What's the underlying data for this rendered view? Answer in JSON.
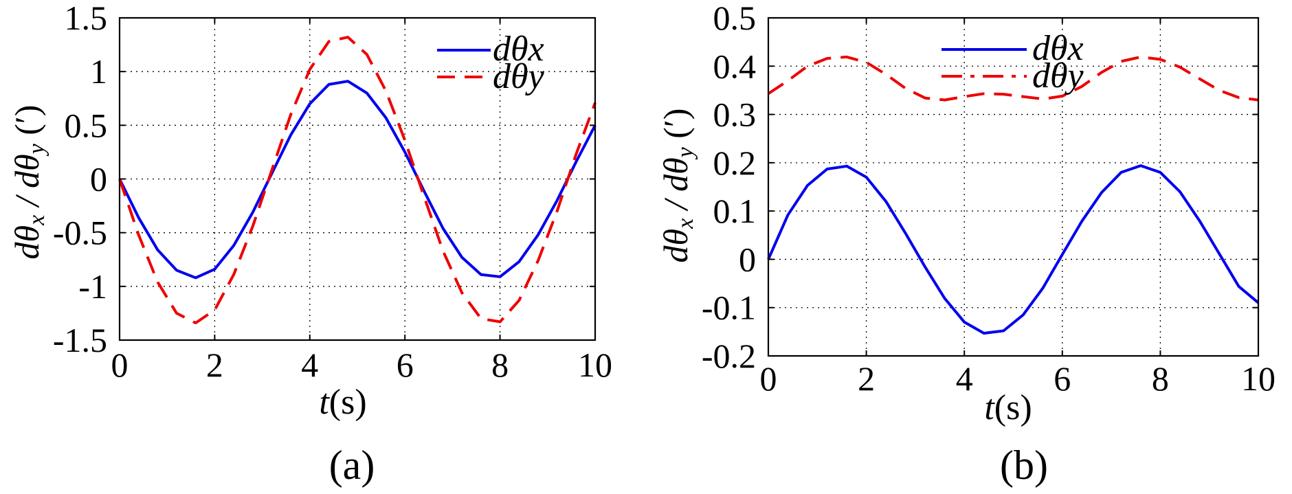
{
  "chart_data": [
    {
      "type": "line",
      "caption": "(a)",
      "xlabel": {
        "var": "t",
        "unit": "(s)"
      },
      "ylabel": {
        "prefix": "dθ",
        "sub1": "x",
        "sep": " / dθ",
        "sub2": "y",
        "unit": " (′)"
      },
      "xlim": [
        0,
        10
      ],
      "ylim": [
        -1.5,
        1.5
      ],
      "xticks": [
        0,
        2,
        4,
        6,
        8,
        10
      ],
      "xtick_labels": [
        "0",
        "2",
        "4",
        "6",
        "8",
        "10"
      ],
      "yticks": [
        1.5,
        1,
        0.5,
        0,
        -0.5,
        -1,
        -1.5
      ],
      "ytick_labels": [
        "1.5",
        "1",
        "0.5",
        "0",
        "-0.5",
        "-1",
        "-1.5"
      ],
      "grid": true,
      "legend": "top-right",
      "series": [
        {
          "name": "dθx",
          "color": "#0000ee",
          "style": "solid",
          "x": [
            0,
            0.4,
            0.8,
            1.2,
            1.6,
            2.0,
            2.4,
            2.8,
            3.2,
            3.6,
            4.0,
            4.4,
            4.8,
            5.2,
            5.6,
            6.0,
            6.4,
            6.8,
            7.2,
            7.6,
            8.0,
            8.4,
            8.8,
            9.2,
            9.6,
            10.0
          ],
          "y": [
            0,
            -0.36,
            -0.66,
            -0.85,
            -0.92,
            -0.84,
            -0.62,
            -0.31,
            0.05,
            0.41,
            0.7,
            0.88,
            0.91,
            0.8,
            0.57,
            0.25,
            -0.11,
            -0.46,
            -0.73,
            -0.89,
            -0.91,
            -0.77,
            -0.52,
            -0.2,
            0.16,
            0.5
          ]
        },
        {
          "name": "dθy",
          "color": "#ee0000",
          "style": "dashed",
          "x": [
            0,
            0.4,
            0.8,
            1.2,
            1.6,
            2.0,
            2.4,
            2.8,
            3.2,
            3.6,
            4.0,
            4.4,
            4.8,
            5.2,
            5.6,
            6.0,
            6.4,
            6.8,
            7.2,
            7.6,
            8.0,
            8.4,
            8.8,
            9.2,
            9.6,
            10.0
          ],
          "y": [
            0,
            -0.52,
            -0.96,
            -1.25,
            -1.34,
            -1.22,
            -0.89,
            -0.44,
            0.08,
            0.6,
            1.02,
            1.28,
            1.32,
            1.16,
            0.82,
            0.36,
            -0.16,
            -0.67,
            -1.06,
            -1.3,
            -1.33,
            -1.13,
            -0.76,
            -0.3,
            0.23,
            0.71
          ]
        }
      ]
    },
    {
      "type": "line",
      "caption": "(b)",
      "xlabel": {
        "var": "t",
        "unit": "(s)"
      },
      "ylabel": {
        "prefix": "dθ",
        "sub1": "x",
        "sep": " / dθ",
        "sub2": "y",
        "unit": " (′)"
      },
      "xlim": [
        0,
        10
      ],
      "ylim": [
        -0.2,
        0.5
      ],
      "xticks": [
        0,
        2,
        4,
        6,
        8,
        10
      ],
      "xtick_labels": [
        "0",
        "2",
        "4",
        "6",
        "8",
        "10"
      ],
      "yticks": [
        0.5,
        0.4,
        0.3,
        0.2,
        0.1,
        0,
        -0.1,
        -0.2
      ],
      "ytick_labels": [
        "0.5",
        "0.4",
        "0.3",
        "0.2",
        "0.1",
        "0",
        "-0.1",
        "-0.2"
      ],
      "grid": true,
      "legend": "top-right",
      "series": [
        {
          "name": "dθx",
          "color": "#0000ee",
          "style": "solid",
          "x": [
            0,
            0.4,
            0.8,
            1.2,
            1.6,
            2.0,
            2.4,
            2.8,
            3.2,
            3.6,
            4.0,
            4.4,
            4.8,
            5.2,
            5.6,
            6.0,
            6.4,
            6.8,
            7.2,
            7.6,
            8.0,
            8.4,
            8.8,
            9.2,
            9.6,
            10.0
          ],
          "y": [
            0,
            0.092,
            0.153,
            0.187,
            0.193,
            0.17,
            0.12,
            0.054,
            -0.016,
            -0.081,
            -0.13,
            -0.153,
            -0.148,
            -0.115,
            -0.06,
            0.01,
            0.079,
            0.138,
            0.18,
            0.194,
            0.18,
            0.14,
            0.08,
            0.012,
            -0.056,
            -0.09
          ]
        },
        {
          "name": "dθy",
          "color": "#ee0000",
          "style": "dashed",
          "x": [
            0,
            0.4,
            0.8,
            1.2,
            1.6,
            2.0,
            2.4,
            2.8,
            3.2,
            3.6,
            4.0,
            4.4,
            4.8,
            5.2,
            5.6,
            6.0,
            6.4,
            6.8,
            7.2,
            7.6,
            8.0,
            8.4,
            8.8,
            9.2,
            9.6,
            10.0
          ],
          "y": [
            0.343,
            0.37,
            0.4,
            0.416,
            0.419,
            0.408,
            0.383,
            0.354,
            0.334,
            0.33,
            0.337,
            0.343,
            0.342,
            0.337,
            0.332,
            0.338,
            0.358,
            0.387,
            0.41,
            0.419,
            0.414,
            0.398,
            0.374,
            0.35,
            0.335,
            0.33
          ]
        }
      ]
    }
  ]
}
